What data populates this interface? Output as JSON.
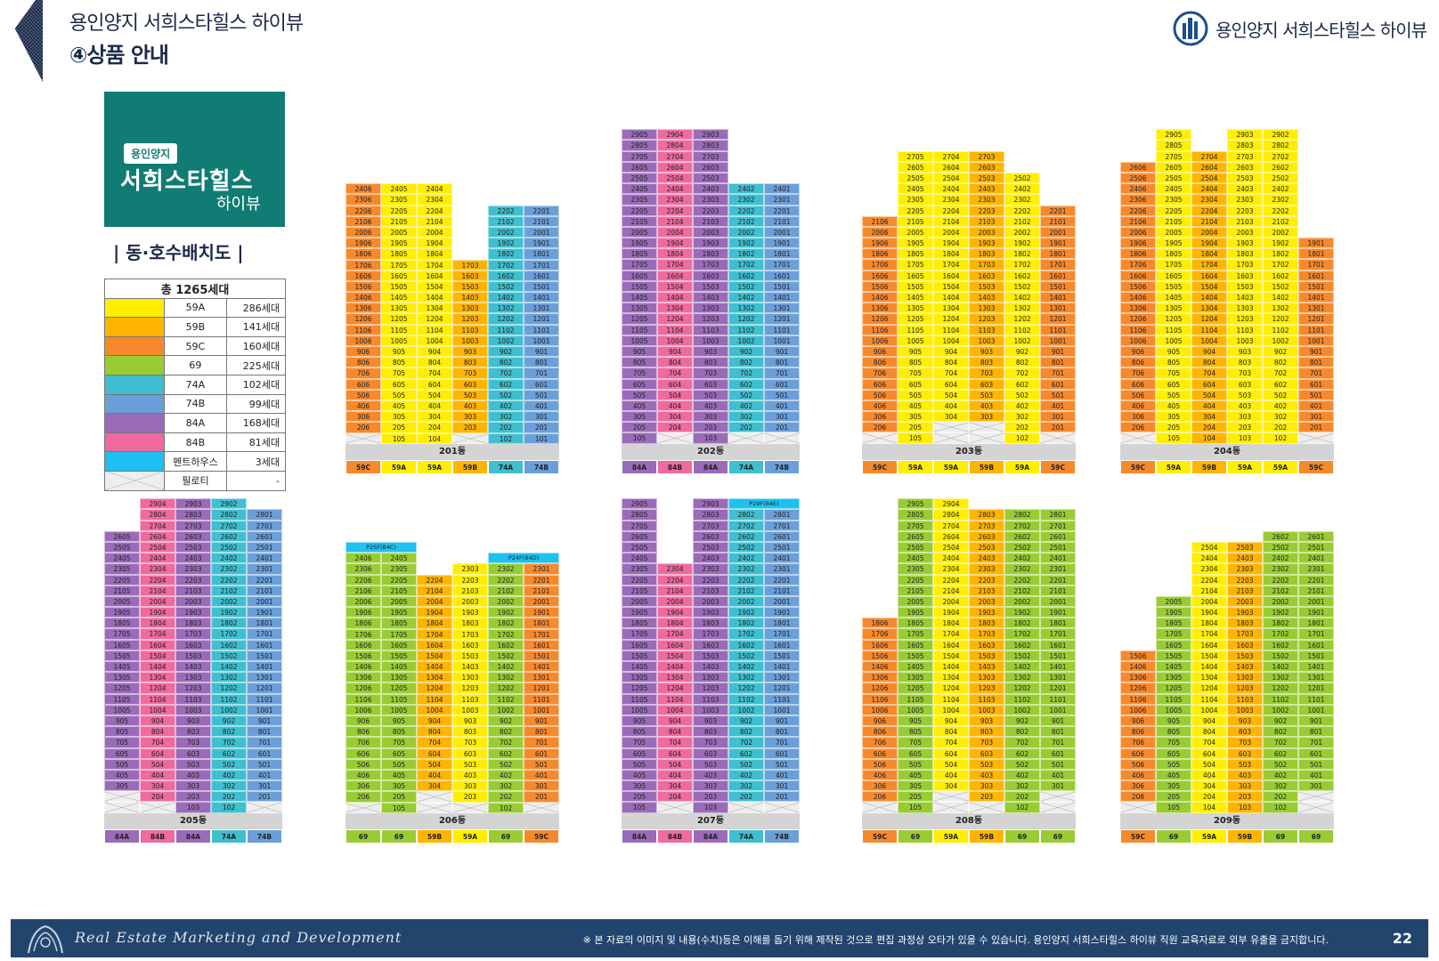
{
  "header": {
    "title": "용인양지 서희스타힐스 하이뷰",
    "subtitle": "④상품 안내",
    "brand_name": "용인양지 서희스타힐스 하이뷰"
  },
  "logo": {
    "badge": "용인양지",
    "main": "서희스타힐스",
    "tail": "하이뷰"
  },
  "distribution_title": "| 동·호수배치도 |",
  "legend": {
    "total_label": "총 1265세대",
    "rows": [
      {
        "type": "59A",
        "count": "286세대",
        "color": "#ffee00"
      },
      {
        "type": "59B",
        "count": "141세대",
        "color": "#ffb400"
      },
      {
        "type": "59C",
        "count": "160세대",
        "color": "#f7892d"
      },
      {
        "type": "69",
        "count": "225세대",
        "color": "#99cc33"
      },
      {
        "type": "74A",
        "count": "102세대",
        "color": "#3fbfcf"
      },
      {
        "type": "74B",
        "count": "99세대",
        "color": "#6b9fd9"
      },
      {
        "type": "84A",
        "count": "168세대",
        "color": "#9a6bb8"
      },
      {
        "type": "84B",
        "count": "81세대",
        "color": "#ef6a9d"
      },
      {
        "type": "펜트하우스",
        "count": "3세대",
        "color": "#1ec1f0"
      },
      {
        "type": "필로티",
        "count": "-",
        "color": "pilotis"
      }
    ]
  },
  "buildings": [
    {
      "name": "201동",
      "types": [
        "59C",
        "59A",
        "59A",
        "59B",
        "74A",
        "74B"
      ],
      "cols": [
        {
          "top": 24,
          "ph": true
        },
        {
          "top": 24
        },
        {
          "top": 24
        },
        {
          "top": 17,
          "ph": true
        },
        {
          "top": 22
        },
        {
          "top": 22
        }
      ]
    },
    {
      "name": "202동",
      "types": [
        "84A",
        "84B",
        "84A",
        "74A",
        "74B"
      ],
      "cols": [
        {
          "top": 29
        },
        {
          "top": 29,
          "ph": true
        },
        {
          "top": 29
        },
        {
          "top": 24,
          "ph": true
        },
        {
          "top": 24,
          "ph": true
        }
      ]
    },
    {
      "name": "203동",
      "types": [
        "59C",
        "59A",
        "59A",
        "59B",
        "59A",
        "59C"
      ],
      "cols": [
        {
          "top": 21,
          "ph": true
        },
        {
          "top": 27
        },
        {
          "top": 27,
          "p2": true
        },
        {
          "top": 27,
          "p2": true
        },
        {
          "top": 25
        },
        {
          "top": 22,
          "ph": true
        }
      ]
    },
    {
      "name": "204동",
      "types": [
        "59C",
        "59A",
        "59B",
        "59A",
        "59A",
        "59C"
      ],
      "cols": [
        {
          "top": 26,
          "ph": true
        },
        {
          "top": 29
        },
        {
          "top": 27
        },
        {
          "top": 29
        },
        {
          "top": 29
        },
        {
          "top": 19,
          "ph": true
        }
      ]
    },
    {
      "name": "205동",
      "types": [
        "84A",
        "84B",
        "84A",
        "74A",
        "74B"
      ],
      "cols": [
        {
          "top": 26,
          "p2": true
        },
        {
          "top": 29,
          "ph": true
        },
        {
          "top": 29
        },
        {
          "top": 29
        },
        {
          "top": 28,
          "ph": true
        }
      ]
    },
    {
      "name": "206동",
      "types": [
        "69",
        "69",
        "59B",
        "59A",
        "69",
        "59C"
      ],
      "cols": [
        {
          "top": 24,
          "ph": true,
          "pent": "P25F(84C)"
        },
        {
          "top": 24,
          "pent2": true
        },
        {
          "top": 22,
          "p2": true
        },
        {
          "top": 23,
          "ph": true
        },
        {
          "top": 23,
          "pent": "P24F(84D)"
        },
        {
          "top": 23,
          "ph": true,
          "pent2": true
        }
      ]
    },
    {
      "name": "207동",
      "types": [
        "84A",
        "84B",
        "84A",
        "74A",
        "74B"
      ],
      "cols": [
        {
          "top": 29
        },
        {
          "top": 23,
          "ph": true
        },
        {
          "top": 29
        },
        {
          "top": 28,
          "ph": true,
          "pent": "P29F(84E)"
        },
        {
          "top": 28,
          "ph": true,
          "pent2": true
        }
      ]
    },
    {
      "name": "208동",
      "types": [
        "59C",
        "69",
        "59A",
        "59B",
        "69",
        "69"
      ],
      "cols": [
        {
          "top": 18,
          "ph": true
        },
        {
          "top": 29
        },
        {
          "top": 29,
          "p2": true
        },
        {
          "top": 28,
          "ph": true
        },
        {
          "top": 28
        },
        {
          "top": 28,
          "p2": true
        }
      ]
    },
    {
      "name": "209동",
      "types": [
        "59C",
        "69",
        "59A",
        "59B",
        "69",
        "69"
      ],
      "cols": [
        {
          "top": 15,
          "ph": true
        },
        {
          "top": 20
        },
        {
          "top": 25
        },
        {
          "top": 25
        },
        {
          "top": 26
        },
        {
          "top": 26,
          "p2": true
        }
      ]
    }
  ],
  "footer": {
    "brand": "Real Estate Marketing and Development",
    "note": "※ 본 자료의 이미지 및 내용(수치)등은 이해를 돕기 위해 제작된 것으로 편집 과정상 오타가 있을 수 있습니다. 용인양지 서희스타힐스 하이뷰 직원 교육자료로 외부 유출을 금지합니다.",
    "page": "22"
  }
}
